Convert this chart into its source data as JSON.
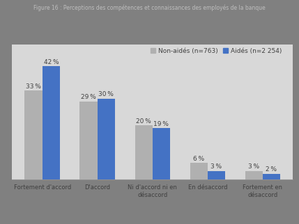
{
  "title": "Figure 16 : Perceptions des compétences et connaissances des employés de la banque",
  "categories": [
    "Fortement d'accord",
    "D'accord",
    "Ni d'accord ni en\ndésaccord",
    "En désaccord",
    "Fortement en\ndésaccord"
  ],
  "non_aide": [
    33,
    29,
    20,
    6,
    3
  ],
  "aide": [
    42,
    30,
    19,
    3,
    2
  ],
  "non_aide_label": "Non-aidés (n=763)",
  "aide_label": "Aidés (n=2 254)",
  "non_aide_color": "#b0b0b0",
  "aide_color": "#4472c4",
  "fig_background": "#808080",
  "plot_background": "#d8d8d8",
  "label_dark": "#404040",
  "ylim_max": 50,
  "bar_width": 0.32,
  "font_size": 6.5,
  "legend_font_size": 6.5,
  "tick_font_size": 6.0
}
